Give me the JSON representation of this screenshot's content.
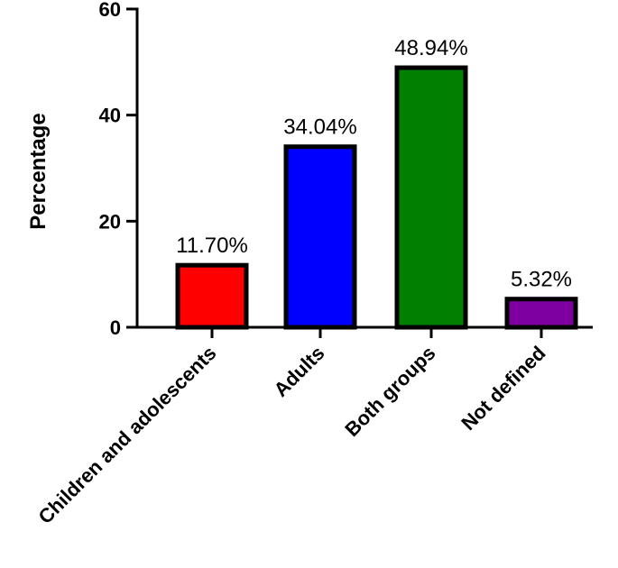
{
  "chart_data": {
    "type": "bar",
    "title": "",
    "xlabel": "",
    "ylabel": "Percentage",
    "ylim": [
      0,
      60
    ],
    "yticks": [
      0,
      20,
      40,
      60
    ],
    "grid": false,
    "categories": [
      "Children and adolescents",
      "Adults",
      "Both groups",
      "Not defined"
    ],
    "values": [
      11.7,
      34.04,
      48.94,
      5.32
    ],
    "data_labels": [
      "11.70%",
      "34.04%",
      "48.94%",
      "5.32%"
    ],
    "colors": [
      "#ff0000",
      "#0000ff",
      "#007f00",
      "#7f00a0"
    ]
  }
}
